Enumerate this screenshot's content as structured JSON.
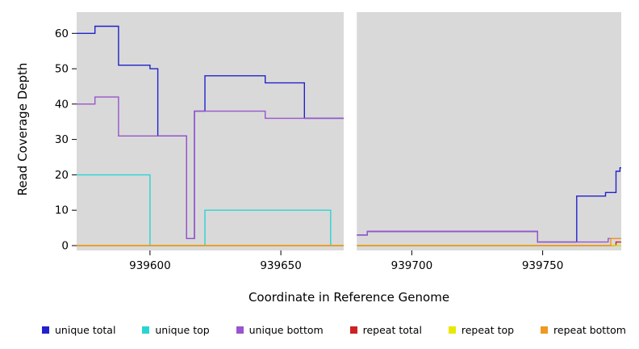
{
  "figure": {
    "background": "#ffffff",
    "plot_background": "#d9d9d9"
  },
  "chart_data": {
    "type": "line",
    "subtype": "step-coverage-plot",
    "title": "",
    "xlabel": "Coordinate in Reference Genome",
    "ylabel": "Read Coverage Depth",
    "xlim": [
      939572,
      939780
    ],
    "ylim": [
      0,
      66
    ],
    "xticks": [
      939600,
      939650,
      939700,
      939750
    ],
    "yticks": [
      0,
      10,
      20,
      30,
      40,
      50,
      60
    ],
    "grid": false,
    "legend_position": "bottom",
    "gap_region": [
      939674,
      939679
    ],
    "series": [
      {
        "name": "unique total",
        "color": "#2222cc",
        "runs": [
          [
            939572,
            939579,
            60
          ],
          [
            939579,
            939588,
            62
          ],
          [
            939588,
            939600,
            51
          ],
          [
            939600,
            939603,
            50
          ],
          [
            939603,
            939614,
            31
          ],
          [
            939614,
            939617,
            2
          ],
          [
            939617,
            939621,
            38
          ],
          [
            939621,
            939644,
            48
          ],
          [
            939644,
            939659,
            46
          ],
          [
            939659,
            939676,
            36
          ],
          [
            939676,
            939683,
            3
          ],
          [
            939683,
            939748,
            4
          ],
          [
            939748,
            939763,
            1
          ],
          [
            939763,
            939774,
            14
          ],
          [
            939774,
            939778,
            15
          ],
          [
            939778,
            939779.5,
            21
          ],
          [
            939779.5,
            939780,
            22
          ]
        ]
      },
      {
        "name": "unique top",
        "color": "#2ad4d4",
        "runs": [
          [
            939572,
            939600,
            20
          ],
          [
            939600,
            939621,
            0
          ],
          [
            939621,
            939669,
            10
          ],
          [
            939669,
            939780,
            0
          ]
        ]
      },
      {
        "name": "unique bottom",
        "color": "#9955cc",
        "runs": [
          [
            939572,
            939579,
            40
          ],
          [
            939579,
            939588,
            42
          ],
          [
            939588,
            939614,
            31
          ],
          [
            939614,
            939617,
            2
          ],
          [
            939617,
            939644,
            38
          ],
          [
            939644,
            939676,
            36
          ],
          [
            939676,
            939683,
            3
          ],
          [
            939683,
            939748,
            4
          ],
          [
            939748,
            939775,
            1
          ],
          [
            939775,
            939780,
            2
          ]
        ]
      },
      {
        "name": "repeat total",
        "color": "#cc2222",
        "runs": [
          [
            939572,
            939778,
            0
          ],
          [
            939778,
            939780,
            1
          ]
        ]
      },
      {
        "name": "repeat top",
        "color": "#e8e800",
        "runs": [
          [
            939572,
            939780,
            0
          ]
        ]
      },
      {
        "name": "repeat bottom",
        "color": "#ee9922",
        "runs": [
          [
            939572,
            939776,
            0
          ],
          [
            939776,
            939780,
            2
          ]
        ]
      }
    ]
  }
}
